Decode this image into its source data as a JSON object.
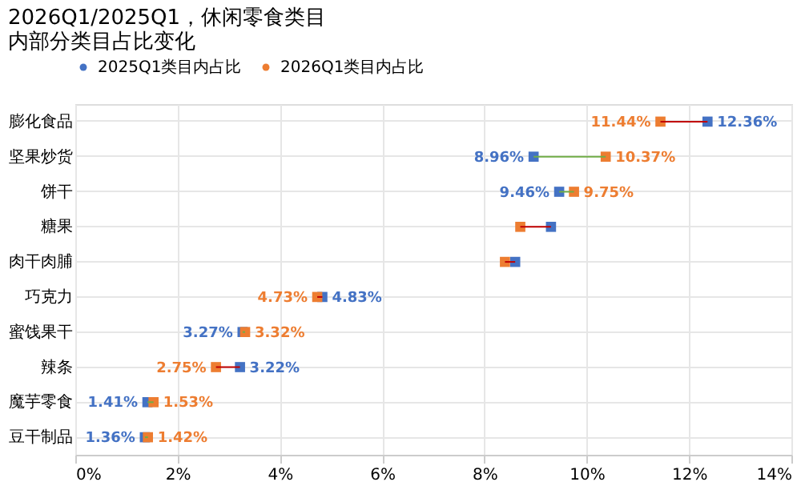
{
  "chart_data": {
    "type": "scatter",
    "orientation": "horizontal",
    "title": "2026Q1/2025Q1，休闲零食类目内部分类目占比变化",
    "categories": [
      "膨化食品",
      "坚果炒货",
      "饼干",
      "糖果",
      "肉干肉脯",
      "巧克力",
      "蜜饯果干",
      "辣条",
      "魔芋零食",
      "豆干制品"
    ],
    "series": [
      {
        "name": "2025Q1类目内占比",
        "color": "#4472c4",
        "values": [
          12.36,
          8.96,
          9.46,
          9.3,
          8.6,
          4.83,
          3.27,
          3.22,
          1.41,
          1.36
        ],
        "value_labels": [
          "12.36%",
          "8.96%",
          "9.46%",
          null,
          null,
          "4.83%",
          "3.27%",
          "3.22%",
          "1.41%",
          "1.36%"
        ]
      },
      {
        "name": "2026Q1类目内占比",
        "color": "#ed7d31",
        "values": [
          11.44,
          10.37,
          9.75,
          8.7,
          8.4,
          4.73,
          3.32,
          2.75,
          1.53,
          1.42
        ],
        "value_labels": [
          "11.44%",
          "10.37%",
          "9.75%",
          null,
          null,
          "4.73%",
          "3.32%",
          "2.75%",
          "1.53%",
          "1.42%"
        ]
      }
    ],
    "xlim": [
      0,
      14
    ],
    "xticks": [
      {
        "value": 0,
        "label": "0%"
      },
      {
        "value": 2,
        "label": "2%"
      },
      {
        "value": 4,
        "label": "4%"
      },
      {
        "value": 6,
        "label": "6%"
      },
      {
        "value": 8,
        "label": "8%"
      },
      {
        "value": 10,
        "label": "10%"
      },
      {
        "value": 12,
        "label": "12%"
      },
      {
        "value": 14,
        "label": "14%"
      }
    ],
    "grid": true,
    "legend": "top",
    "marker": "square"
  }
}
